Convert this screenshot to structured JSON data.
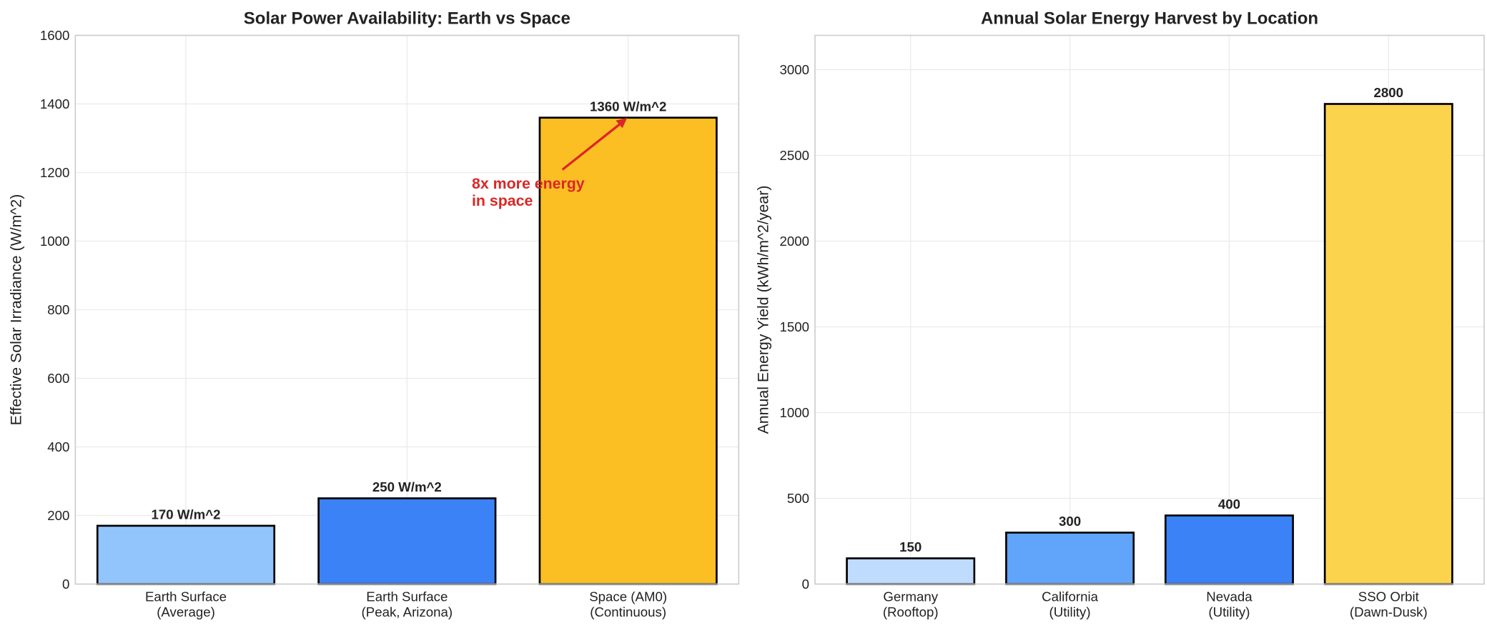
{
  "chart_data": [
    {
      "type": "bar",
      "title": "Solar Power Availability: Earth vs Space",
      "xlabel": "",
      "ylabel": "Effective Solar Irradiance (W/m^2)",
      "categories": [
        "Earth Surface\n(Average)",
        "Earth Surface\n(Peak, Arizona)",
        "Space (AM0)\n(Continuous)"
      ],
      "values": [
        170,
        250,
        1360
      ],
      "data_labels": [
        "170 W/m^2",
        "250 W/m^2",
        "1360 W/m^2"
      ],
      "colors": [
        "#93c5fd",
        "#3b82f6",
        "#fbbf24"
      ],
      "ylim": [
        0,
        1600
      ],
      "yticks": [
        0,
        200,
        400,
        600,
        800,
        1000,
        1200,
        1400,
        1600
      ],
      "grid": true,
      "annotation": {
        "text": "8x more energy\nin space",
        "color": "#dc2626",
        "points_to": {
          "category": "Space (AM0)\n(Continuous)",
          "value": 1360
        }
      }
    },
    {
      "type": "bar",
      "title": "Annual Solar Energy Harvest by Location",
      "xlabel": "",
      "ylabel": "Annual Energy Yield (kWh/m^2/year)",
      "categories": [
        "Germany\n(Rooftop)",
        "California\n(Utility)",
        "Nevada\n(Utility)",
        "SSO Orbit\n(Dawn-Dusk)"
      ],
      "values": [
        150,
        300,
        400,
        2800
      ],
      "data_labels": [
        "150",
        "300",
        "400",
        "2800"
      ],
      "colors": [
        "#bfdbfe",
        "#60a5fa",
        "#3b82f6",
        "#fcd34d"
      ],
      "ylim": [
        0,
        3200
      ],
      "yticks": [
        0,
        500,
        1000,
        1500,
        2000,
        2500,
        3000
      ],
      "grid": true
    }
  ]
}
